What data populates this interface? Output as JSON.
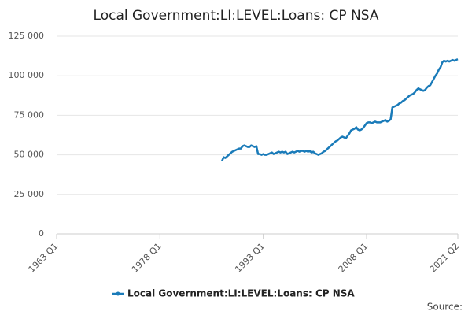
{
  "chart_data": {
    "type": "line",
    "title": "Local Government:LI:LEVEL:Loans: CP NSA",
    "x": [
      "1987 Q1",
      "1987 Q2",
      "1987 Q3",
      "1987 Q4",
      "1988 Q1",
      "1988 Q2",
      "1988 Q3",
      "1988 Q4",
      "1989 Q1",
      "1989 Q2",
      "1989 Q3",
      "1989 Q4",
      "1990 Q1",
      "1990 Q2",
      "1990 Q3",
      "1990 Q4",
      "1991 Q1",
      "1991 Q2",
      "1991 Q3",
      "1991 Q4",
      "1992 Q1",
      "1992 Q2",
      "1992 Q3",
      "1992 Q4",
      "1993 Q1",
      "1993 Q2",
      "1993 Q3",
      "1993 Q4",
      "1994 Q1",
      "1994 Q2",
      "1994 Q3",
      "1994 Q4",
      "1995 Q1",
      "1995 Q2",
      "1995 Q3",
      "1995 Q4",
      "1996 Q1",
      "1996 Q2",
      "1996 Q3",
      "1996 Q4",
      "1997 Q1",
      "1997 Q2",
      "1997 Q3",
      "1997 Q4",
      "1998 Q1",
      "1998 Q2",
      "1998 Q3",
      "1998 Q4",
      "1999 Q1",
      "1999 Q2",
      "1999 Q3",
      "1999 Q4",
      "2000 Q1",
      "2000 Q2",
      "2000 Q3",
      "2000 Q4",
      "2001 Q1",
      "2001 Q2",
      "2001 Q3",
      "2001 Q4",
      "2002 Q1",
      "2002 Q2",
      "2002 Q3",
      "2002 Q4",
      "2003 Q1",
      "2003 Q2",
      "2003 Q3",
      "2003 Q4",
      "2004 Q1",
      "2004 Q2",
      "2004 Q3",
      "2004 Q4",
      "2005 Q1",
      "2005 Q2",
      "2005 Q3",
      "2005 Q4",
      "2006 Q1",
      "2006 Q2",
      "2006 Q3",
      "2006 Q4",
      "2007 Q1",
      "2007 Q2",
      "2007 Q3",
      "2007 Q4",
      "2008 Q1",
      "2008 Q2",
      "2008 Q3",
      "2008 Q4",
      "2009 Q1",
      "2009 Q2",
      "2009 Q3",
      "2009 Q4",
      "2010 Q1",
      "2010 Q2",
      "2010 Q3",
      "2010 Q4",
      "2011 Q1",
      "2011 Q2",
      "2011 Q3",
      "2011 Q4",
      "2012 Q1",
      "2012 Q2",
      "2012 Q3",
      "2012 Q4",
      "2013 Q1",
      "2013 Q2",
      "2013 Q3",
      "2013 Q4",
      "2014 Q1",
      "2014 Q2",
      "2014 Q3",
      "2014 Q4",
      "2015 Q1",
      "2015 Q2",
      "2015 Q3",
      "2015 Q4",
      "2016 Q1",
      "2016 Q2",
      "2016 Q3",
      "2016 Q4",
      "2017 Q1",
      "2017 Q2",
      "2017 Q3",
      "2017 Q4",
      "2018 Q1",
      "2018 Q2",
      "2018 Q3",
      "2018 Q4",
      "2019 Q1",
      "2019 Q2",
      "2019 Q3",
      "2019 Q4",
      "2020 Q1",
      "2020 Q2",
      "2020 Q3",
      "2020 Q4",
      "2021 Q1",
      "2021 Q2"
    ],
    "series": [
      {
        "name": "Local Government:LI:LEVEL:Loans: CP NSA",
        "color": "#1a7bb9",
        "values": [
          46000,
          48500,
          48000,
          49000,
          50000,
          51000,
          52000,
          52500,
          53000,
          53500,
          54000,
          54000,
          55500,
          56000,
          55500,
          55000,
          55000,
          56000,
          55500,
          55000,
          55500,
          50500,
          50500,
          50000,
          50500,
          50000,
          50000,
          50500,
          51000,
          51500,
          50500,
          51000,
          51500,
          52000,
          51500,
          52000,
          51500,
          52000,
          50500,
          51000,
          51500,
          52000,
          51500,
          52000,
          52500,
          52000,
          52500,
          52500,
          52000,
          52500,
          52000,
          52500,
          51500,
          52000,
          51000,
          50500,
          50000,
          50500,
          51000,
          52000,
          52500,
          53500,
          54500,
          55500,
          56500,
          57500,
          58500,
          59000,
          60000,
          61000,
          61500,
          61000,
          60500,
          62000,
          63500,
          65500,
          66000,
          66500,
          67500,
          66000,
          65500,
          66000,
          67000,
          68500,
          70000,
          70500,
          70500,
          70000,
          70500,
          71000,
          70500,
          70500,
          70500,
          71000,
          71500,
          72000,
          71000,
          71500,
          72500,
          80000,
          80500,
          81000,
          81500,
          82500,
          83000,
          84000,
          84500,
          85500,
          86500,
          87500,
          88000,
          88500,
          89500,
          91000,
          92000,
          91500,
          91000,
          90500,
          91000,
          92500,
          93500,
          94000,
          96000,
          98000,
          100000,
          101500,
          104000,
          105500,
          108500,
          109500,
          109000,
          109500,
          109000,
          109500,
          110000,
          109500,
          110000,
          110500
        ]
      }
    ],
    "xlim": [
      "1963 Q1",
      "2021 Q2"
    ],
    "xticks": [
      "1963 Q1",
      "1978 Q1",
      "1993 Q1",
      "2008 Q1",
      "2021 Q2"
    ],
    "ylim": [
      0,
      125000
    ],
    "yticks": [
      0,
      {
        "value": 25000,
        "label": "25 000"
      },
      {
        "value": 50000,
        "label": "50 000"
      },
      {
        "value": 75000,
        "label": "75 000"
      },
      {
        "value": 100000,
        "label": "100 000"
      },
      {
        "value": 125000,
        "label": "125 000"
      }
    ],
    "grid": true,
    "source": "Source:"
  }
}
